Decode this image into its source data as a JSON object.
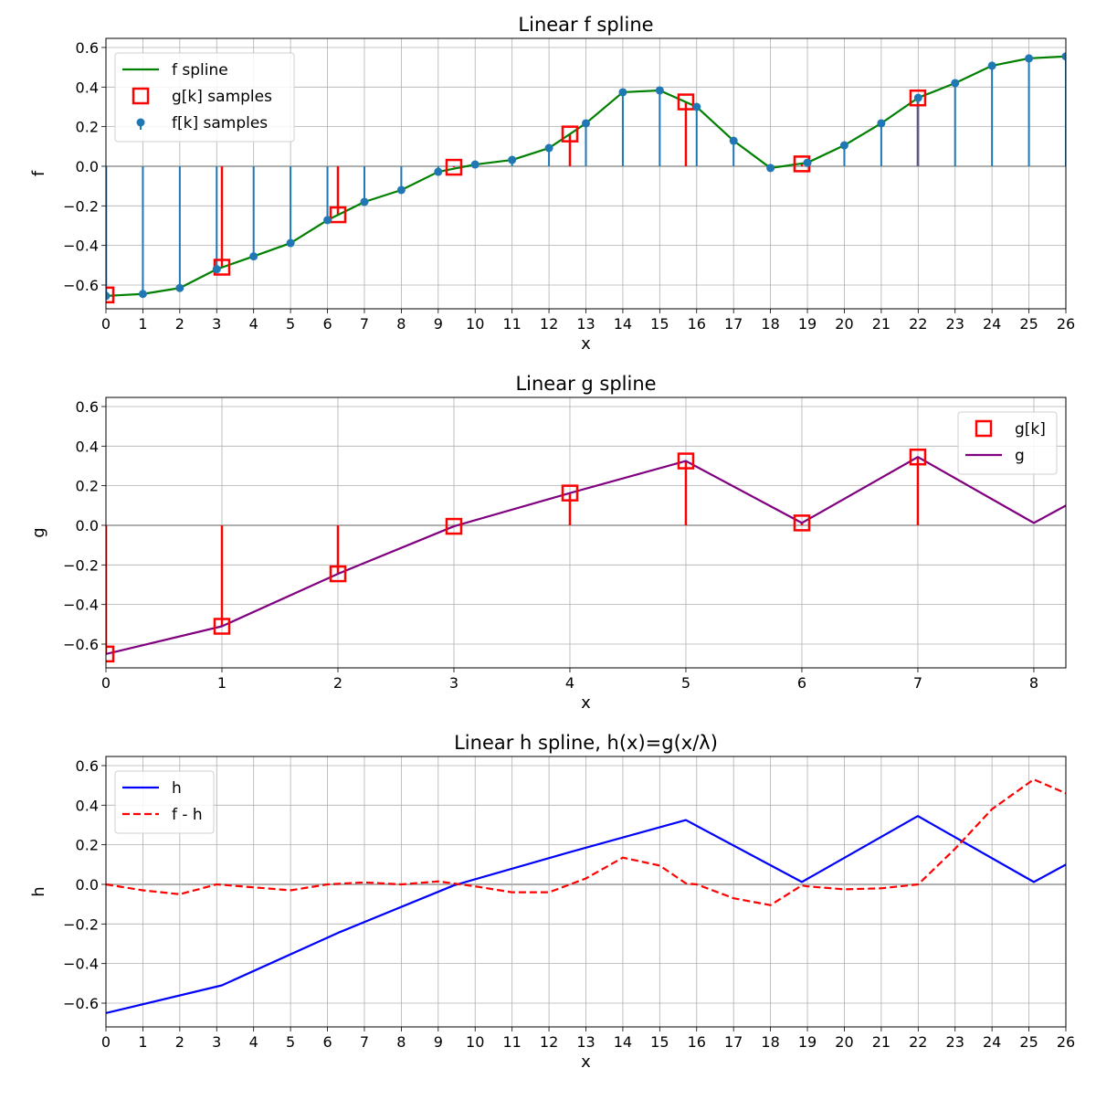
{
  "chart_data": [
    {
      "type": "line",
      "title": "Linear f spline",
      "xlabel": "x",
      "ylabel": "f",
      "xlim": [
        0,
        26
      ],
      "ylim": [
        -0.72,
        0.646
      ],
      "xticks": [
        0,
        1,
        2,
        3,
        4,
        5,
        6,
        7,
        8,
        9,
        10,
        11,
        12,
        13,
        14,
        15,
        16,
        17,
        18,
        19,
        20,
        21,
        22,
        23,
        24,
        25,
        26
      ],
      "yticks": [
        -0.6,
        -0.4,
        -0.2,
        0.0,
        0.2,
        0.4,
        0.6
      ],
      "grid": true,
      "legend": "top-left",
      "series": [
        {
          "name": "f spline",
          "kind": "line",
          "color": "#008000",
          "x": [
            0,
            1,
            2,
            3,
            4,
            5,
            6,
            7,
            8,
            9,
            10,
            11,
            12,
            13,
            14,
            15,
            16,
            17,
            18,
            19,
            20,
            21,
            22,
            23,
            24,
            25,
            26
          ],
          "y": [
            -0.655,
            -0.645,
            -0.615,
            -0.52,
            -0.455,
            -0.388,
            -0.272,
            -0.18,
            -0.12,
            -0.028,
            0.009,
            0.032,
            0.092,
            0.217,
            0.374,
            0.383,
            0.3,
            0.129,
            -0.009,
            0.018,
            0.106,
            0.217,
            0.346,
            0.42,
            0.508,
            0.545,
            0.555
          ]
        },
        {
          "name": "g[k] samples",
          "kind": "stem-square",
          "color": "#ff0000",
          "x": [
            0,
            3.1416,
            6.2832,
            9.4248,
            12.5664,
            15.708,
            18.8496,
            21.9911
          ],
          "y": [
            -0.65,
            -0.51,
            -0.245,
            -0.005,
            0.163,
            0.325,
            0.012,
            0.345
          ]
        },
        {
          "name": "f[k] samples",
          "kind": "stem-dot",
          "color": "#1f77b4",
          "x": [
            0,
            1,
            2,
            3,
            4,
            5,
            6,
            7,
            8,
            9,
            10,
            11,
            12,
            13,
            14,
            15,
            16,
            17,
            18,
            19,
            20,
            21,
            22,
            23,
            24,
            25,
            26
          ],
          "y": [
            -0.655,
            -0.645,
            -0.615,
            -0.52,
            -0.455,
            -0.388,
            -0.272,
            -0.18,
            -0.12,
            -0.028,
            0.009,
            0.032,
            0.092,
            0.217,
            0.374,
            0.383,
            0.3,
            0.129,
            -0.009,
            0.018,
            0.106,
            0.217,
            0.346,
            0.42,
            0.508,
            0.545,
            0.555
          ]
        }
      ]
    },
    {
      "type": "line",
      "title": "Linear g spline",
      "xlabel": "x",
      "ylabel": "g",
      "xlim": [
        0,
        8.276
      ],
      "ylim": [
        -0.72,
        0.646
      ],
      "xticks": [
        0,
        1,
        2,
        3,
        4,
        5,
        6,
        7,
        8
      ],
      "yticks": [
        -0.6,
        -0.4,
        -0.2,
        0.0,
        0.2,
        0.4,
        0.6
      ],
      "grid": true,
      "legend": "top-right",
      "series": [
        {
          "name": "g[k]",
          "kind": "stem-square",
          "color": "#ff0000",
          "x": [
            0,
            1,
            2,
            3,
            4,
            5,
            6,
            7
          ],
          "y": [
            -0.65,
            -0.51,
            -0.245,
            -0.005,
            0.163,
            0.325,
            0.012,
            0.345
          ]
        },
        {
          "name": "g",
          "kind": "line",
          "color": "#800080",
          "x": [
            0,
            1,
            2,
            3,
            4,
            5,
            6,
            7,
            8,
            8.276
          ],
          "y": [
            -0.65,
            -0.51,
            -0.245,
            -0.005,
            0.163,
            0.325,
            0.012,
            0.345,
            0.012,
            0.1
          ]
        }
      ]
    },
    {
      "type": "line",
      "title": "Linear h spline, h(x)=g(x/λ)",
      "xlabel": "x",
      "ylabel": "h",
      "xlim": [
        0,
        26
      ],
      "ylim": [
        -0.72,
        0.646
      ],
      "xticks": [
        0,
        1,
        2,
        3,
        4,
        5,
        6,
        7,
        8,
        9,
        10,
        11,
        12,
        13,
        14,
        15,
        16,
        17,
        18,
        19,
        20,
        21,
        22,
        23,
        24,
        25,
        26
      ],
      "yticks": [
        -0.6,
        -0.4,
        -0.2,
        0.0,
        0.2,
        0.4,
        0.6
      ],
      "grid": true,
      "legend": "top-left",
      "series": [
        {
          "name": "h",
          "kind": "line",
          "color": "#0000ff",
          "x": [
            0,
            3.1416,
            6.2832,
            9.4248,
            12.5664,
            15.708,
            18.8496,
            21.9911,
            25.1327,
            26
          ],
          "y": [
            -0.65,
            -0.51,
            -0.245,
            -0.005,
            0.163,
            0.325,
            0.012,
            0.345,
            0.012,
            0.1
          ]
        },
        {
          "name": "f - h",
          "kind": "dashed",
          "color": "#ff0000",
          "x": [
            0,
            1,
            2,
            3,
            4,
            5,
            6,
            7,
            8,
            9,
            10,
            11,
            12,
            13,
            14,
            15,
            15.708,
            16,
            17,
            18,
            18.85,
            19,
            20,
            21,
            22,
            23,
            24,
            25.13,
            26
          ],
          "y": [
            0,
            -0.03,
            -0.05,
            0.0,
            -0.015,
            -0.03,
            0.0,
            0.01,
            0.0,
            0.015,
            -0.01,
            -0.04,
            -0.04,
            0.03,
            0.135,
            0.095,
            0.005,
            0.0,
            -0.07,
            -0.105,
            -0.005,
            -0.01,
            -0.025,
            -0.02,
            0.0,
            0.18,
            0.38,
            0.53,
            0.46
          ]
        }
      ]
    }
  ]
}
